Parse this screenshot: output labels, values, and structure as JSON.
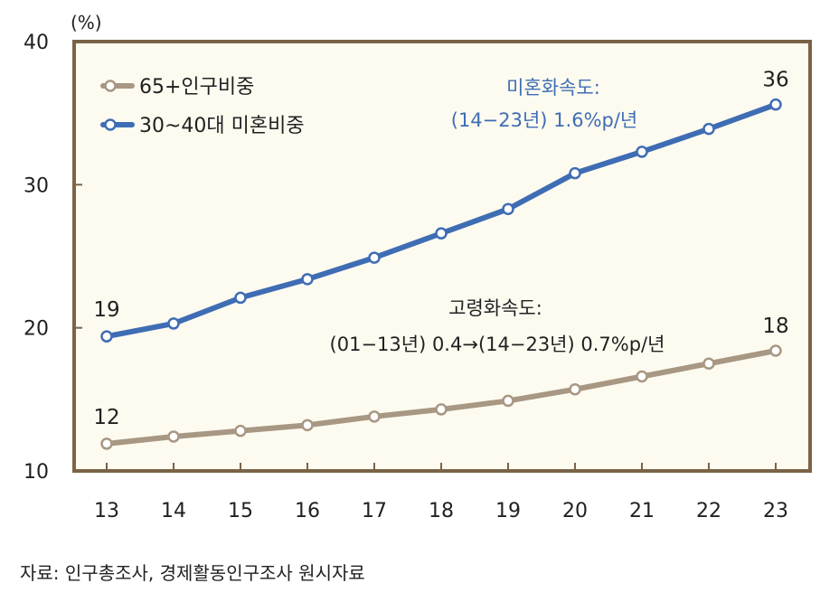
{
  "chart_data": {
    "type": "line",
    "unit_label": "(%)",
    "categories": [
      "13",
      "14",
      "15",
      "16",
      "17",
      "18",
      "19",
      "20",
      "21",
      "22",
      "23"
    ],
    "ylim": [
      10,
      40
    ],
    "yticks": [
      "10",
      "20",
      "30",
      "40"
    ],
    "series": [
      {
        "name": "65+인구비중",
        "color": "#a89783",
        "values": [
          11.9,
          12.4,
          12.8,
          13.2,
          13.8,
          14.3,
          14.9,
          15.7,
          16.6,
          17.5,
          18.4
        ]
      },
      {
        "name": "30~40대 미혼비중",
        "color": "#3f6db4",
        "values": [
          19.4,
          20.3,
          22.1,
          23.4,
          24.9,
          26.6,
          28.3,
          30.8,
          32.3,
          33.9,
          35.6
        ]
      }
    ],
    "point_labels": {
      "blue_start": "19",
      "blue_end": "36",
      "tan_start": "12",
      "tan_end": "18"
    },
    "annotations": {
      "blue_line1": "미혼화속도:",
      "blue_line2": "(14−23년) 1.6%p/년",
      "dark_line1": "고령화속도:",
      "dark_line2": "(01−13년) 0.4→(14−23년) 0.7%p/년"
    },
    "legend_placement": "top-left",
    "grid": false
  },
  "source": "자료: 인구총조사, 경제활동인구조사 원시자료",
  "colors": {
    "frame": "#7b6346",
    "plot_background": "#fdfbf0",
    "blue": "#3f6db4",
    "tan": "#a89783"
  }
}
